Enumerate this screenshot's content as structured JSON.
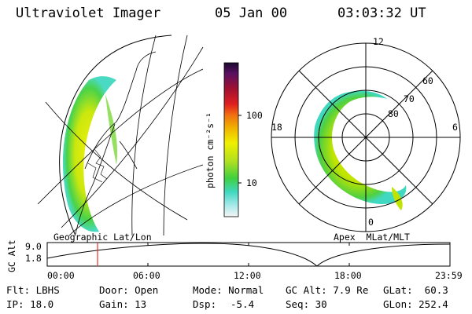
{
  "header": {
    "instrument": "Ultraviolet Imager",
    "date": "05 Jan 00",
    "time": "03:03:32 UT"
  },
  "left_panel": {
    "label": "Geographic Lat/Lon"
  },
  "right_panel": {
    "label": "Apex  MLat/MLT",
    "lat_labels": [
      "80",
      "70",
      "60"
    ],
    "mlt_labels": {
      "top": "12",
      "left": "18",
      "right": "6",
      "bottom": "0"
    }
  },
  "colorbar": {
    "unit_label": "photon cm⁻²s⁻¹",
    "tick_labels": [
      "100",
      "10"
    ]
  },
  "timeline": {
    "y_label": "GC Alt",
    "y_ticks": [
      "9.0",
      "1.8"
    ],
    "x_ticks": [
      "00:00",
      "06:00",
      "12:00",
      "18:00",
      "23:59"
    ],
    "marker_time": "03:03"
  },
  "footer": {
    "filter": "Flt: LBHS",
    "ip": "IP: 18.0",
    "door": "Door: Open",
    "gain": "Gain: 13",
    "mode": "Mode: Normal",
    "dsp_label": "Dsp:",
    "dsp_value": "-5.4",
    "gc_alt": "GC Alt: 7.9 Re",
    "seq": "Seq: 30",
    "glat": "GLat:  60.3",
    "glon": "GLon: 252.4"
  },
  "colors": {
    "background": "#ffffff",
    "marker": "#e53020",
    "lines": "#000000"
  }
}
